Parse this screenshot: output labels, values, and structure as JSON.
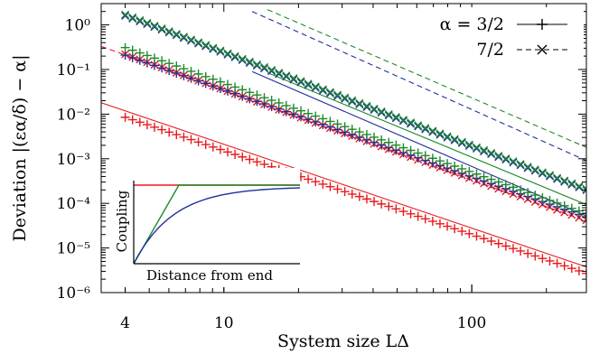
{
  "chart_data": {
    "type": "line",
    "xlabel": "System size LΔ",
    "ylabel": "Deviation |(εα/δ) − α|",
    "x_scale": "log",
    "y_scale": "log",
    "xlim": [
      3.2,
      290
    ],
    "ylim": [
      1e-06,
      3
    ],
    "x_ticks": [
      {
        "value": 4,
        "label": "4"
      },
      {
        "value": 10,
        "label": "10"
      },
      {
        "value": 100,
        "label": "100"
      }
    ],
    "y_ticks": [
      {
        "value": 1,
        "label": "10⁰"
      },
      {
        "value": 0.1,
        "label": "10⁻¹"
      },
      {
        "value": 0.01,
        "label": "10⁻²"
      },
      {
        "value": 0.001,
        "label": "10⁻³"
      },
      {
        "value": 0.0001,
        "label": "10⁻⁴"
      },
      {
        "value": 1e-05,
        "label": "10⁻⁵"
      },
      {
        "value": 1e-06,
        "label": "10⁻⁶"
      }
    ],
    "legend": {
      "placement": "top-right",
      "entries": [
        {
          "label": "α = 3/2",
          "style": "solid",
          "marker": "+"
        },
        {
          "label": "7/2",
          "style": "dashed",
          "marker": "x"
        }
      ]
    },
    "colors": {
      "red": "#e8191c",
      "blue": "#1f2f9c",
      "green": "#1e8a2a"
    },
    "series": [
      {
        "color": "red",
        "alpha": "3/2",
        "marker": "+",
        "x_start": 4,
        "x_end": 290,
        "y_at_x_start": 0.0085,
        "slope": -1.88
      },
      {
        "color": "red",
        "alpha": "7/2",
        "marker": "x",
        "x_start": 4,
        "x_end": 290,
        "y_at_x_start": 0.22,
        "slope": -2.0
      },
      {
        "color": "blue",
        "alpha": "3/2",
        "marker": "+",
        "x_start": 4,
        "x_end": 290,
        "y_at_x_start": 0.21,
        "slope": -1.95
      },
      {
        "color": "blue",
        "alpha": "7/2",
        "marker": "x",
        "x_start": 4,
        "x_end": 290,
        "y_at_x_start": 1.6,
        "slope": -2.1
      },
      {
        "color": "green",
        "alpha": "3/2",
        "marker": "+",
        "x_start": 4,
        "x_end": 290,
        "y_at_x_start": 0.31,
        "slope": -2.0
      },
      {
        "color": "green",
        "alpha": "7/2",
        "marker": "x",
        "x_start": 4,
        "x_end": 290,
        "y_at_x_start": 1.7,
        "slope": -2.1
      }
    ],
    "asymptotes": [
      {
        "color": "red",
        "style": "solid",
        "x_start": 3.2,
        "x_end": 290,
        "y_at_x_start": 0.018,
        "slope": -1.88
      },
      {
        "color": "red",
        "style": "dashed",
        "x_start": 3.2,
        "x_end": 290,
        "y_at_x_start": 0.33,
        "slope": -2.0
      },
      {
        "color": "blue",
        "style": "solid",
        "x_start": 13,
        "x_end": 290,
        "y_at_x_start": 0.09,
        "slope": -2.4
      },
      {
        "color": "blue",
        "style": "dashed",
        "x_start": 13,
        "x_end": 290,
        "y_at_x_start": 2.0,
        "slope": -2.48
      },
      {
        "color": "green",
        "style": "solid",
        "x_start": 15,
        "x_end": 290,
        "y_at_x_start": 0.085,
        "slope": -2.3
      },
      {
        "color": "green",
        "style": "dashed",
        "x_start": 15,
        "x_end": 290,
        "y_at_x_start": 2.2,
        "slope": -2.4
      }
    ],
    "inset": {
      "ylabel": "Coupling",
      "xlabel": "Distance from end",
      "curves": [
        {
          "color": "red",
          "shape": "constant"
        },
        {
          "color": "green",
          "shape": "linear ramp then constant"
        },
        {
          "color": "blue",
          "shape": "exponential saturation"
        }
      ]
    }
  }
}
